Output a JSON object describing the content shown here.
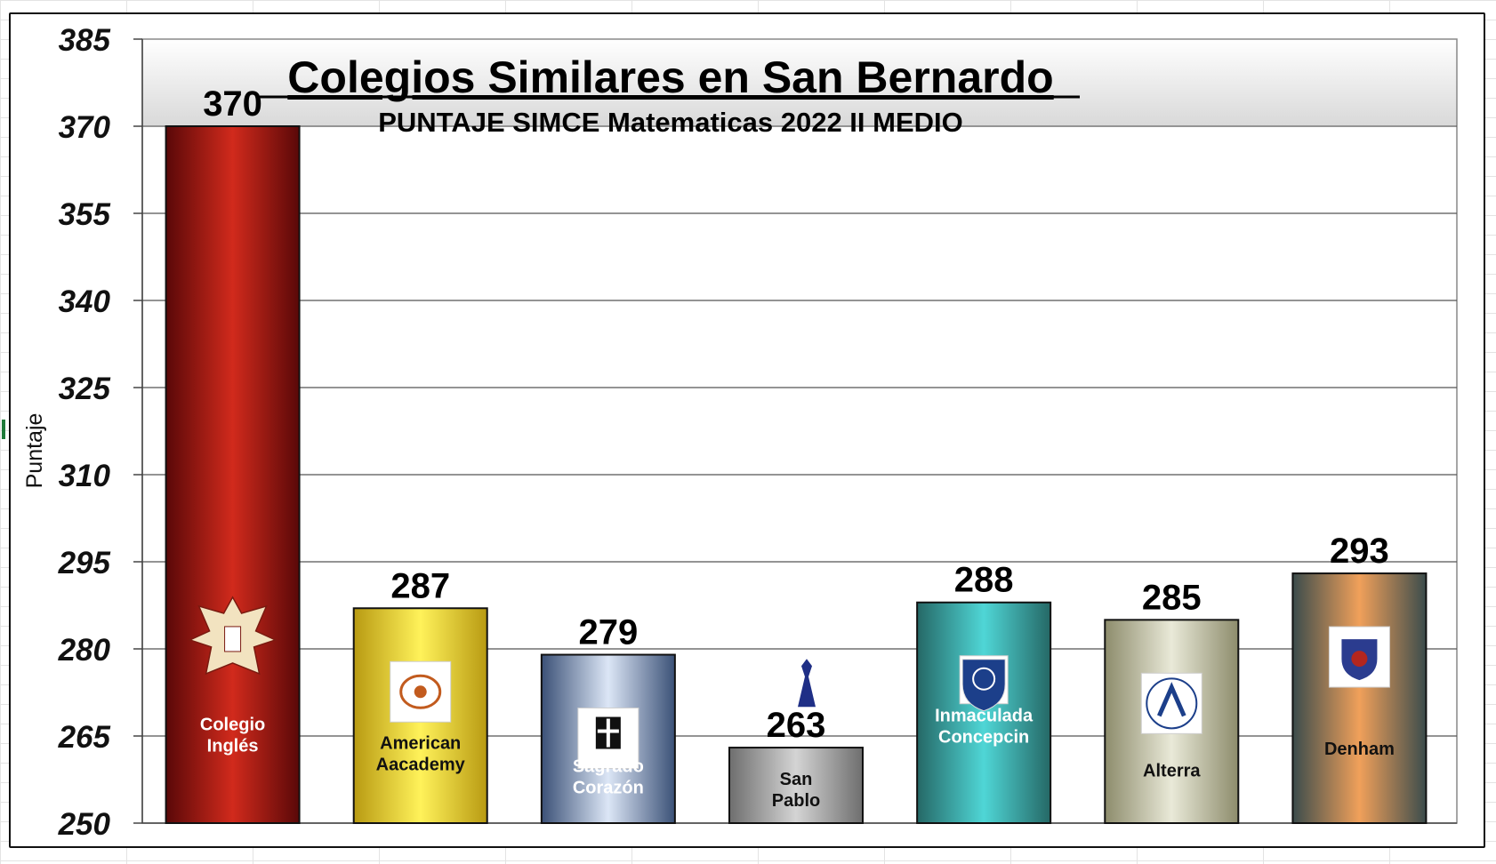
{
  "chart_data": {
    "type": "bar",
    "title": "Colegios Similares en San Bernardo",
    "subtitle": "PUNTAJE SIMCE Matematicas  2022  II MEDIO",
    "ylabel": "Puntaje",
    "ylim": [
      250,
      385
    ],
    "yticks": [
      385,
      370,
      355,
      340,
      325,
      310,
      295,
      280,
      265,
      250
    ],
    "grid": true,
    "categories": [
      [
        "Colegio",
        "Inglés"
      ],
      [
        "American",
        "Aacademy"
      ],
      [
        "Sagrado",
        "Corazón"
      ],
      [
        "San",
        "Pablo"
      ],
      [
        "Inmaculada",
        "Concepcin"
      ],
      [
        "Alterra"
      ],
      [
        "Denham"
      ]
    ],
    "values": [
      370,
      287,
      279,
      263,
      288,
      285,
      293
    ],
    "bar_colors": [
      {
        "edge": "#5a0808",
        "mid": "#d12a1c",
        "label": "#ffffff"
      },
      {
        "edge": "#b89a12",
        "mid": "#fff25a",
        "label": "#111111"
      },
      {
        "edge": "#3b5177",
        "mid": "#dce6f6",
        "label": "#ffffff"
      },
      {
        "edge": "#6e6e6e",
        "mid": "#d4d4d4",
        "label": "#111111"
      },
      {
        "edge": "#256866",
        "mid": "#4fd6d6",
        "label": "#ffffff"
      },
      {
        "edge": "#8d8c6c",
        "mid": "#e9e9d8",
        "label": "#111111"
      },
      {
        "edge": "#3b4c4c",
        "mid": "#f0a05a",
        "label": "#111111"
      }
    ],
    "logos": [
      "eagle-crest-logo",
      "american-academy-logo",
      "sagrado-corazon-logo",
      "ispm-logo",
      "inmaculada-shield-logo",
      "alterra-logo",
      "denham-crest-logo"
    ]
  }
}
